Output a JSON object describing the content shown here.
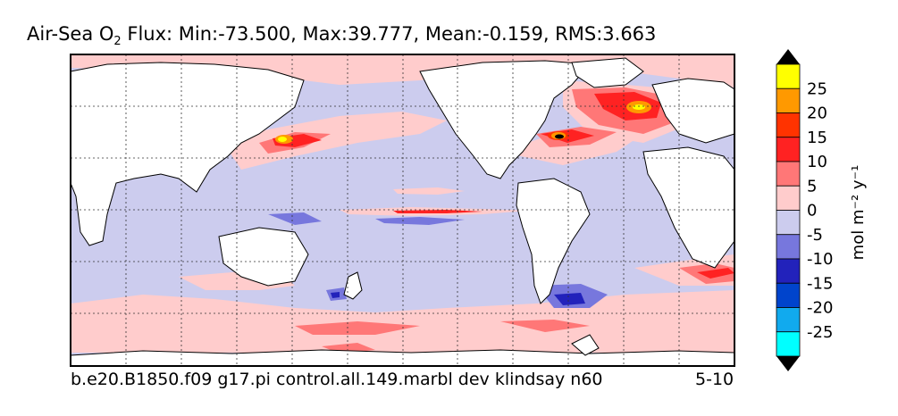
{
  "title": {
    "prefix": "Air-Sea O",
    "subscript": "2",
    "suffix": " Flux: Min:-73.500, Max:39.777, Mean:-0.159, RMS:3.663"
  },
  "footer": {
    "run_name": "b.e20.B1850.f09 g17.pi control.all.149.marbl dev klindsay n60",
    "years": "5-10"
  },
  "colorbar": {
    "unit_label": "mol m⁻² y⁻¹",
    "levels": [
      {
        "label": "25",
        "color": "#ffff00"
      },
      {
        "label": "20",
        "color": "#ff9900"
      },
      {
        "label": "15",
        "color": "#ff3300"
      },
      {
        "label": "10",
        "color": "#ff2222"
      },
      {
        "label": "5",
        "color": "#ff7777"
      },
      {
        "label": "0",
        "color": "#ffcccc"
      },
      {
        "label": "-5",
        "color": "#ccccee"
      },
      {
        "label": "-10",
        "color": "#7777dd"
      },
      {
        "label": "-15",
        "color": "#2222bb"
      },
      {
        "label": "-20",
        "color": "#0044cc"
      },
      {
        "label": "-25",
        "color": "#11aaee"
      },
      {
        "label": "",
        "color": "#00ffff"
      }
    ],
    "top_arrow_color": "#000000",
    "bottom_arrow_color": "#000000"
  },
  "map": {
    "ocean_base_color": "#ccccee",
    "land_color": "#ffffff",
    "grid": true
  }
}
